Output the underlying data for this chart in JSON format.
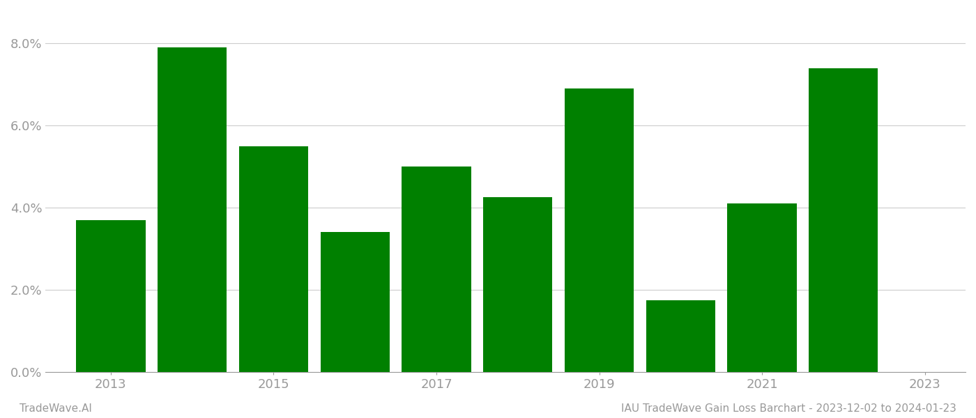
{
  "years": [
    2013,
    2014,
    2015,
    2016,
    2017,
    2018,
    2019,
    2020,
    2021,
    2022
  ],
  "values": [
    0.037,
    0.079,
    0.055,
    0.034,
    0.05,
    0.0425,
    0.069,
    0.0175,
    0.041,
    0.074
  ],
  "bar_color": "#008000",
  "background_color": "#ffffff",
  "footer_left": "TradeWave.AI",
  "footer_right": "IAU TradeWave Gain Loss Barchart - 2023-12-02 to 2024-01-23",
  "ylim": [
    0,
    0.088
  ],
  "yticks": [
    0.0,
    0.02,
    0.04,
    0.06,
    0.08
  ],
  "ytick_labels": [
    "0.0%",
    "2.0%",
    "4.0%",
    "6.0%",
    "8.0%"
  ],
  "xtick_positions": [
    2013,
    2015,
    2017,
    2019,
    2021,
    2023
  ],
  "xlim_left": 2012.2,
  "xlim_right": 2023.5,
  "grid_color": "#cccccc",
  "tick_color": "#999999",
  "bar_width": 0.85,
  "tick_fontsize": 13,
  "footer_fontsize": 11
}
